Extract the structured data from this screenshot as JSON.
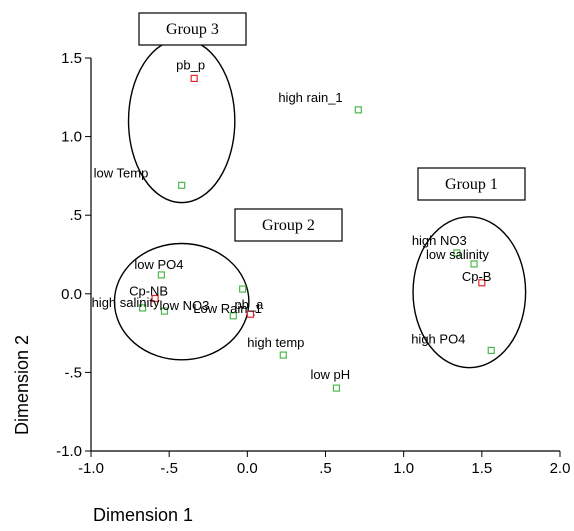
{
  "chart_data": {
    "type": "scatter",
    "xlabel": "Dimension 1",
    "ylabel": "Dimension 2",
    "xlim": [
      -1.0,
      2.0
    ],
    "ylim": [
      -1.0,
      1.5
    ],
    "xticks": [
      "-1.0",
      "-.5",
      "0.0",
      ".5",
      "1.0",
      "1.5",
      "2.0"
    ],
    "yticks": [
      "-1.0",
      "-.5",
      "0.0",
      ".5",
      "1.0",
      "1.5"
    ],
    "grid": false,
    "colors": {
      "green": "#4cb84c",
      "red": "#e0282d"
    },
    "points": [
      {
        "label": "pb_p",
        "x": -0.34,
        "y": 1.37,
        "color": "red"
      },
      {
        "label": "high rain_1",
        "x": 0.71,
        "y": 1.17,
        "color": "green"
      },
      {
        "label": "low Temp",
        "x": -0.42,
        "y": 0.69,
        "color": "green"
      },
      {
        "label": "low PO4",
        "x": -0.55,
        "y": 0.12,
        "color": "green"
      },
      {
        "label": "Cp-NB",
        "x": -0.59,
        "y": -0.03,
        "color": "red"
      },
      {
        "label": "high salinity",
        "x": -0.67,
        "y": -0.09,
        "color": "green"
      },
      {
        "label": "low NO3",
        "x": -0.53,
        "y": -0.11,
        "color": "green"
      },
      {
        "label": "Low Rain_1",
        "x": -0.09,
        "y": -0.14,
        "color": "green"
      },
      {
        "label": "pb_a",
        "x": 0.02,
        "y": -0.13,
        "color": "red"
      },
      {
        "label": "",
        "x": -0.03,
        "y": 0.03,
        "color": "green"
      },
      {
        "label": "high temp",
        "x": 0.23,
        "y": -0.39,
        "color": "green"
      },
      {
        "label": "low pH",
        "x": 0.57,
        "y": -0.6,
        "color": "green"
      },
      {
        "label": "high NO3",
        "x": 1.34,
        "y": 0.26,
        "color": "green"
      },
      {
        "label": "low salinity",
        "x": 1.45,
        "y": 0.19,
        "color": "green"
      },
      {
        "label": "Cp-B",
        "x": 1.5,
        "y": 0.07,
        "color": "red"
      },
      {
        "label": "high PO4",
        "x": 1.56,
        "y": -0.36,
        "color": "green"
      }
    ],
    "groups": [
      {
        "label": "Group 3",
        "cx": -0.42,
        "cy": 1.1,
        "rx": 0.34,
        "ry": 0.52
      },
      {
        "label": "Group 2",
        "cx": -0.42,
        "cy": -0.05,
        "rx": 0.43,
        "ry": 0.37
      },
      {
        "label": "Group 1",
        "cx": 1.42,
        "cy": 0.01,
        "rx": 0.36,
        "ry": 0.48
      }
    ]
  }
}
